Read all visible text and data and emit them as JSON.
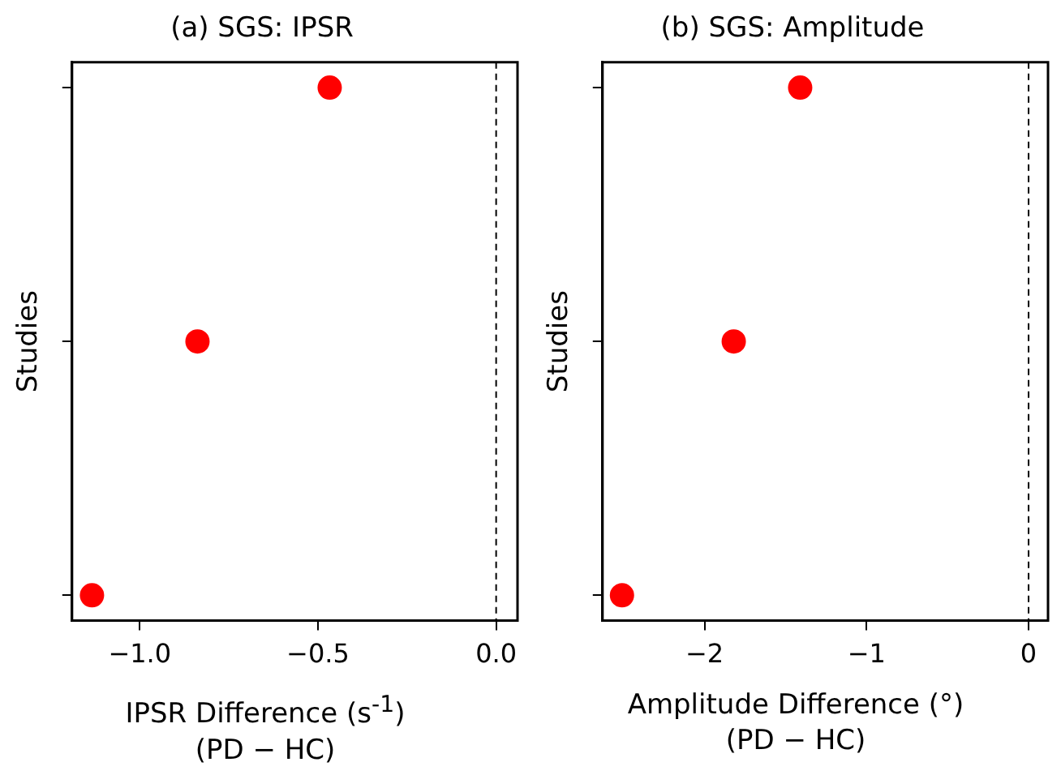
{
  "chart_data": [
    {
      "type": "scatter",
      "orientation": "horizontal",
      "title": "(a) SGS: IPSR",
      "xlabel": "IPSR Difference (s$^{-1}$)\n(PD − HC)",
      "ylabel": "Studies",
      "categories": [
        null,
        null,
        null
      ],
      "values": [
        -0.467,
        -0.838,
        -1.134
      ],
      "color": "#ff0000",
      "marker": "circle",
      "xlim": [
        -1.19,
        0.06
      ],
      "xticks": [
        {
          "value": -1,
          "label": "−1.0"
        },
        {
          "value": -0.5,
          "label": "−0.5"
        },
        {
          "value": 0,
          "label": "0.0"
        }
      ],
      "tick_labels": "x",
      "ref_lines": [
        {
          "axis": "x",
          "value": 0,
          "color": "#000000",
          "line_style": "dashed"
        }
      ]
    },
    {
      "type": "scatter",
      "orientation": "horizontal",
      "title": "(b) SGS: Amplitude",
      "xlabel": "Amplitude Difference (°)\n(PD − HC)",
      "ylabel": "Studies",
      "categories": [
        null,
        null,
        null
      ],
      "values": [
        -1.41,
        -1.82,
        -2.51
      ],
      "color": "#ff0000",
      "marker": "circle",
      "xlim": [
        -2.63,
        0.12
      ],
      "xticks": [
        {
          "value": -2,
          "label": "−2"
        },
        {
          "value": -1,
          "label": "−1"
        },
        {
          "value": 0,
          "label": "0"
        }
      ],
      "tick_labels": "x",
      "ref_lines": [
        {
          "axis": "x",
          "value": 0,
          "color": "#000000",
          "line_style": "dashed"
        }
      ]
    }
  ]
}
